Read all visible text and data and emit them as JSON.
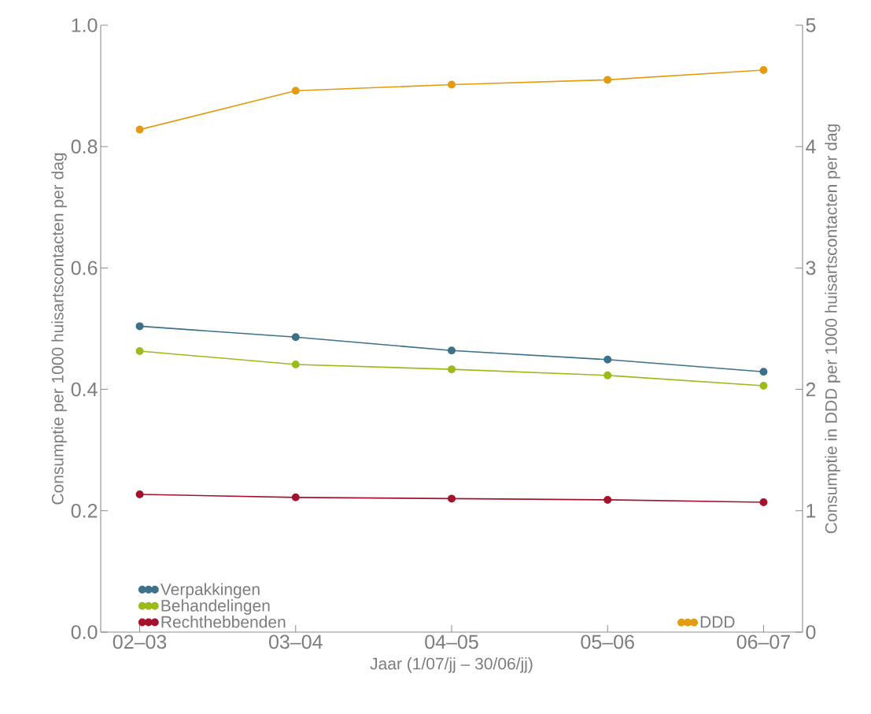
{
  "chart_data": {
    "type": "line",
    "xlabel": "Jaar (1/07/jj  –  30/06/jj)",
    "ylabel": "Consumptie per 1000 huisartscontacten per dag",
    "y2label": "Consumptie in DDD per 1000 huisartscontacten per dag",
    "categories": [
      "02–03",
      "03–04",
      "04–05",
      "05–06",
      "06–07"
    ],
    "series": [
      {
        "name": "Verpakkingen",
        "color": "#3d7089",
        "values": [
          0.504,
          0.486,
          0.464,
          0.449,
          0.429
        ]
      },
      {
        "name": "Behandelingen",
        "color": "#9bbb1a",
        "values": [
          0.463,
          0.441,
          0.433,
          0.423,
          0.406
        ]
      },
      {
        "name": "Rechthebbenden",
        "color": "#a3122e",
        "values": [
          0.227,
          0.222,
          0.22,
          0.218,
          0.214
        ]
      },
      {
        "name": "DDD",
        "color": "#e39b12",
        "axis": "y2",
        "values": [
          4.14,
          4.46,
          4.51,
          4.55,
          4.63
        ]
      }
    ],
    "ylim": [
      0,
      1
    ],
    "yticks": [
      {
        "value": 0,
        "label": "0.0"
      },
      {
        "value": 0.2,
        "label": "0.2"
      },
      {
        "value": 0.4,
        "label": "0.4"
      },
      {
        "value": 0.6,
        "label": "0.6"
      },
      {
        "value": 0.8,
        "label": "0.8"
      },
      {
        "value": 1,
        "label": "1.0"
      }
    ],
    "y2lim": [
      0,
      5
    ],
    "y2ticks": [
      0,
      1,
      2,
      3,
      4,
      5
    ],
    "marker": "circle",
    "legend": "bottom",
    "grid": false
  }
}
